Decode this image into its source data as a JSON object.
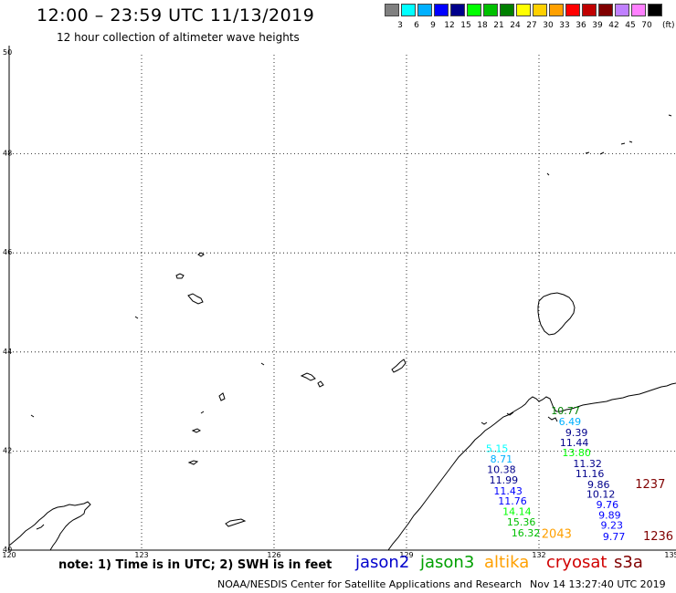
{
  "header": {
    "title": "12:00 – 23:59 UTC 11/13/2019",
    "subtitle": "12 hour collection of altimeter wave heights"
  },
  "scale": {
    "colors": [
      "#808080",
      "#00ffff",
      "#00b0ff",
      "#0000ff",
      "#00008b",
      "#00ff00",
      "#00c000",
      "#008000",
      "#ffff00",
      "#ffd000",
      "#ffa000",
      "#ff0000",
      "#c00000",
      "#800000",
      "#c080ff",
      "#ff80ff",
      "#000000"
    ],
    "ticks": [
      "3",
      "6",
      "9",
      "12",
      "15",
      "18",
      "21",
      "24",
      "27",
      "30",
      "33",
      "36",
      "39",
      "42",
      "45",
      "70"
    ],
    "unit": "(ft)"
  },
  "map": {
    "lon_ticks": [
      "120",
      "123",
      "126",
      "129",
      "132",
      "135"
    ],
    "lat_ticks": [
      "50",
      "48",
      "46",
      "44",
      "42",
      "40"
    ],
    "observations": [
      {
        "text": "10.77",
        "color": "#008000",
        "lon": 132.6,
        "lat": 42.82
      },
      {
        "text": "6.49",
        "color": "#00b0ff",
        "lon": 132.7,
        "lat": 42.6
      },
      {
        "text": "9.39",
        "color": "#00008b",
        "lon": 132.85,
        "lat": 42.38
      },
      {
        "text": "11.44",
        "color": "#00008b",
        "lon": 132.8,
        "lat": 42.17
      },
      {
        "text": "13.80",
        "color": "#00ff00",
        "lon": 132.85,
        "lat": 41.97
      },
      {
        "text": "11.32",
        "color": "#00008b",
        "lon": 133.1,
        "lat": 41.75
      },
      {
        "text": "11.16",
        "color": "#00008b",
        "lon": 133.15,
        "lat": 41.55
      },
      {
        "text": "9.86",
        "color": "#00008b",
        "lon": 133.35,
        "lat": 41.33
      },
      {
        "text": "10.12",
        "color": "#00008b",
        "lon": 133.4,
        "lat": 41.13
      },
      {
        "text": "9.76",
        "color": "#0000ff",
        "lon": 133.55,
        "lat": 40.92
      },
      {
        "text": "9.89",
        "color": "#0000ff",
        "lon": 133.6,
        "lat": 40.71
      },
      {
        "text": "9.23",
        "color": "#0000ff",
        "lon": 133.65,
        "lat": 40.51
      },
      {
        "text": "9.77",
        "color": "#0000ff",
        "lon": 133.7,
        "lat": 40.28
      },
      {
        "text": "1237",
        "color": "#800000",
        "lon": 134.52,
        "lat": 41.33
      },
      {
        "text": "1236",
        "color": "#800000",
        "lon": 134.7,
        "lat": 40.28
      },
      {
        "text": "5.15",
        "color": "#00ffff",
        "lon": 131.05,
        "lat": 42.05
      },
      {
        "text": "8.71",
        "color": "#00b0ff",
        "lon": 131.15,
        "lat": 41.84
      },
      {
        "text": "10.38",
        "color": "#00008b",
        "lon": 131.15,
        "lat": 41.63
      },
      {
        "text": "11.99",
        "color": "#00008b",
        "lon": 131.2,
        "lat": 41.42
      },
      {
        "text": "11.43",
        "color": "#0000ff",
        "lon": 131.3,
        "lat": 41.2
      },
      {
        "text": "11.76",
        "color": "#0000ff",
        "lon": 131.4,
        "lat": 40.99
      },
      {
        "text": "14.14",
        "color": "#00ff00",
        "lon": 131.5,
        "lat": 40.78
      },
      {
        "text": "15.36",
        "color": "#00c000",
        "lon": 131.6,
        "lat": 40.57
      },
      {
        "text": "16.32",
        "color": "#00c000",
        "lon": 131.7,
        "lat": 40.35
      },
      {
        "text": "2043",
        "color": "#ffa000",
        "lon": 132.4,
        "lat": 40.32
      }
    ]
  },
  "legend": {
    "note": "note: 1) Time is in UTC; 2) SWH is in feet",
    "satellites": [
      {
        "name": "jason2",
        "color": "#0000cc"
      },
      {
        "name": "jason3",
        "color": "#00a000"
      },
      {
        "name": "altika",
        "color": "#ffa000"
      },
      {
        "name": "cryosat",
        "color": "#d00000"
      },
      {
        "name": "s3a",
        "color": "#800000"
      }
    ]
  },
  "footer": {
    "credit": "NOAA/NESDIS Center for Satellite Applications and Research",
    "timestamp": "Nov 14 13:27:40 UTC 2019"
  }
}
